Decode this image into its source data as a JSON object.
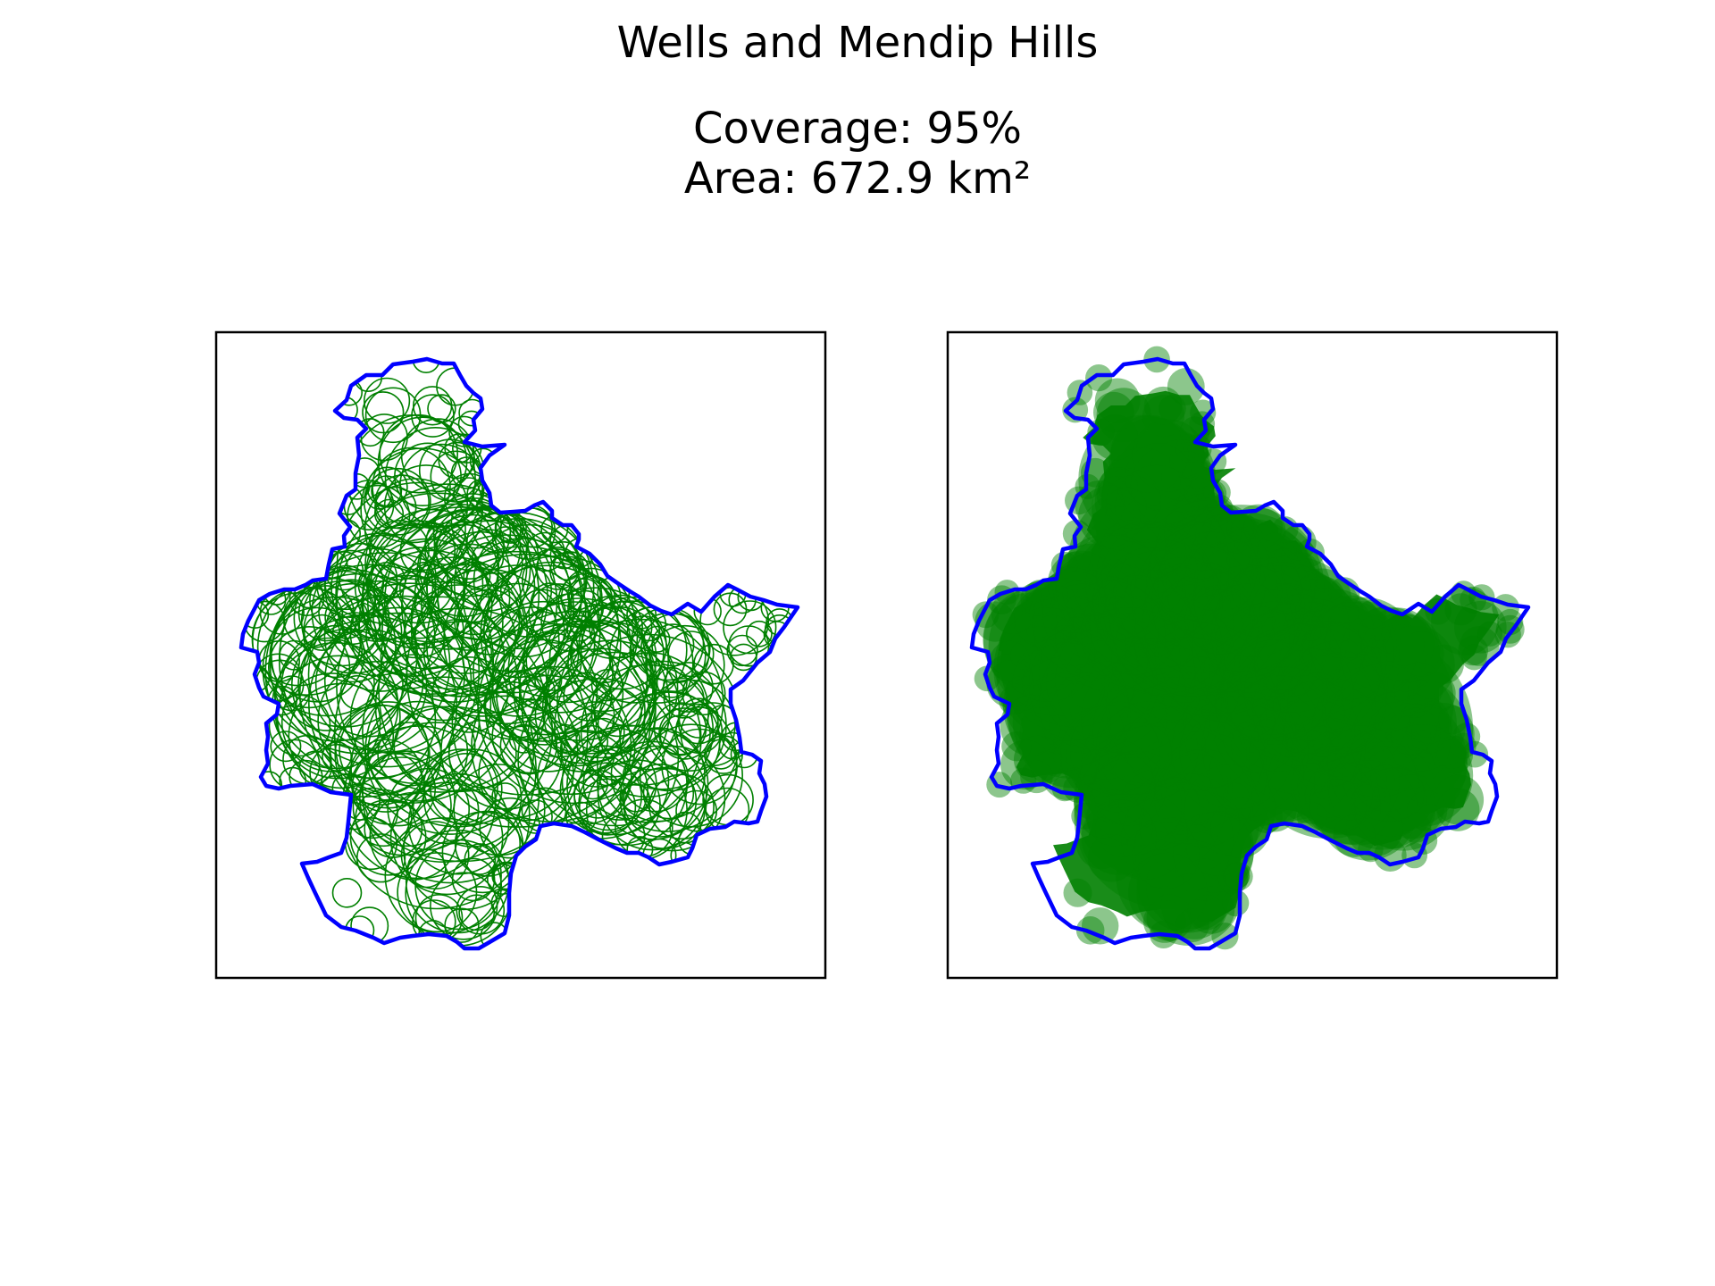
{
  "figure": {
    "title": "Wells and Mendip Hills",
    "coverage_label": "Coverage: 95%",
    "area_label": "Area: 672.9 km²"
  },
  "colors": {
    "boundary": "#0000ff",
    "circle": "#008000",
    "frame": "#000000",
    "background": "#ffffff"
  },
  "panels": [
    {
      "name": "circle-outlines",
      "style": "outline"
    },
    {
      "name": "circle-fill",
      "style": "filled"
    }
  ]
}
